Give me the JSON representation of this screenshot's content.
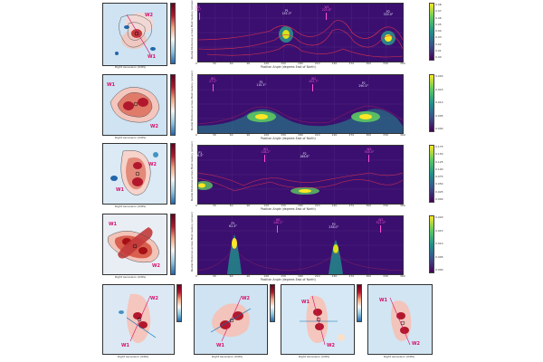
{
  "axes": {
    "ra_label": "Right Ascension (ICRS)",
    "polar_x_label": "Position Angle (degrees East of North)",
    "polar_y_label": "Radial Distance across Host Galaxy (arcsec)",
    "ticks": [
      "0",
      "30",
      "60",
      "90",
      "120",
      "150",
      "180",
      "210",
      "240",
      "270",
      "300",
      "330",
      "360"
    ]
  },
  "rows": [
    {
      "map_labels": [
        "W2",
        "W1"
      ],
      "cbar_ticks": [
        "0.08",
        "0.07",
        "0.06",
        "0.05",
        "0.04",
        "0.03",
        "0.02",
        "0.01",
        "0.00"
      ],
      "peaks": [
        {
          "id": "P1",
          "pa": "155.3°"
        },
        {
          "id": "P2",
          "pa": "333.9°"
        }
      ],
      "markers": [
        {
          "id": "W1",
          "pa": "225.8°"
        },
        {
          "id": "W2",
          "pa": "2.4°"
        }
      ]
    },
    {
      "map_labels": [
        "W1",
        "W2"
      ],
      "cbar_ticks": [
        "0.020",
        "0.015",
        "0.010",
        "0.005",
        "0.000"
      ],
      "peaks": [
        {
          "id": "P1",
          "pa": "110.3°"
        },
        {
          "id": "P2",
          "pa": "290.5°"
        }
      ],
      "markers": [
        {
          "id": "W1",
          "pa": "27.2°"
        },
        {
          "id": "W2",
          "pa": "202.7°"
        }
      ]
    },
    {
      "map_labels": [
        "W2",
        "W1"
      ],
      "cbar_ticks": [
        "0.175",
        "0.150",
        "0.125",
        "0.100",
        "0.075",
        "0.050",
        "0.025",
        "0.000"
      ],
      "peaks": [
        {
          "id": "P1",
          "pa": "6.3°"
        },
        {
          "id": "P2",
          "pa": "186.8°"
        }
      ],
      "markers": [
        {
          "id": "W1",
          "pa": "118.2°"
        },
        {
          "id": "W2",
          "pa": "300.5°"
        }
      ]
    },
    {
      "map_labels": [
        "W1",
        "W2"
      ],
      "cbar_ticks": [
        "0.020",
        "0.015",
        "0.010",
        "0.005",
        "0.000"
      ],
      "peaks": [
        {
          "id": "P1",
          "pa": "62.4°"
        },
        {
          "id": "P2",
          "pa": "238.0°"
        }
      ],
      "markers": [
        {
          "id": "W1",
          "pa": "140.1°"
        },
        {
          "id": "W2",
          "pa": "321.0°"
        }
      ]
    }
  ],
  "bottom_maps": [
    {
      "labels": [
        "W2",
        "W1"
      ]
    },
    {
      "labels": [
        "W2",
        "W1"
      ]
    },
    {
      "labels": [
        "W1",
        "W2"
      ]
    },
    {
      "labels": [
        "W1",
        "W2"
      ]
    }
  ],
  "colors": {
    "polar_bg": "#3b0f6f",
    "contour": "#e0334f",
    "marker": "#ff4fd8",
    "accent_red": "#b2182b",
    "cbar_top": "#fde725",
    "cbar_bottom": "#440154"
  }
}
